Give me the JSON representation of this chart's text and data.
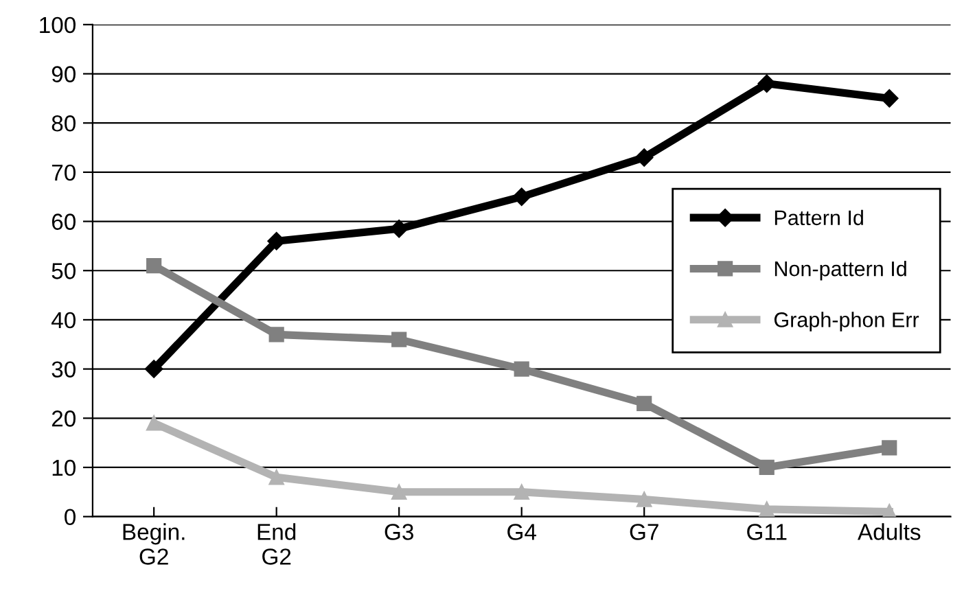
{
  "chart_data": {
    "type": "line",
    "categories": [
      "Begin.\nG2",
      "End\nG2",
      "G3",
      "G4",
      "G7",
      "G11",
      "Adults"
    ],
    "series": [
      {
        "name": "Pattern Id",
        "color": "#000000",
        "marker": "diamond",
        "values": [
          30,
          56,
          58.5,
          65,
          73,
          88,
          85
        ]
      },
      {
        "name": "Non-pattern Id",
        "color": "#808080",
        "marker": "square",
        "values": [
          51,
          37,
          36,
          30,
          23,
          10,
          14
        ]
      },
      {
        "name": "Graph-phon Err",
        "color": "#b3b3b3",
        "marker": "triangle",
        "values": [
          19,
          8,
          5,
          5,
          3.5,
          1.5,
          1
        ]
      }
    ],
    "ylim": [
      0,
      100
    ],
    "yticks": [
      0,
      10,
      20,
      30,
      40,
      50,
      60,
      70,
      80,
      90,
      100
    ],
    "grid": "y",
    "legend": "right",
    "line_style": "solid"
  }
}
